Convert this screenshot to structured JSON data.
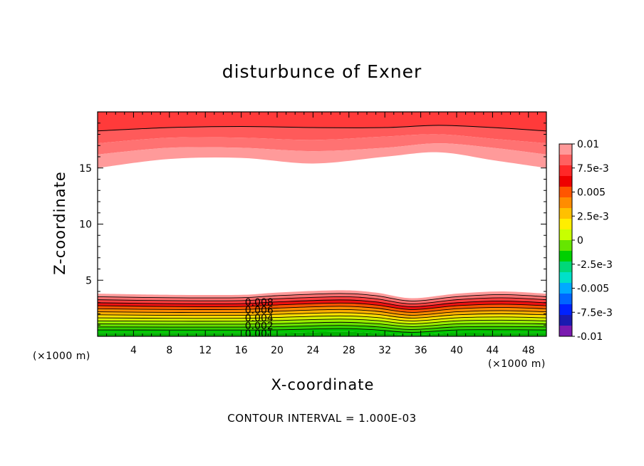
{
  "chart_data": {
    "type": "heatmap",
    "title": "disturbunce of Exner",
    "xlabel": "X-coordinate",
    "ylabel": "Z-coordinate",
    "x_unit": "(×1000 m)",
    "xlim": [
      0,
      50
    ],
    "ylim": [
      0,
      20
    ],
    "x_ticks": [
      4,
      8,
      12,
      16,
      20,
      24,
      28,
      32,
      36,
      40,
      44,
      48
    ],
    "y_ticks": [
      5,
      10,
      15
    ],
    "contour_interval_text": "CONTOUR INTERVAL = 1.000E-03",
    "contour_labels": [
      {
        "text": "0.008",
        "x": 18,
        "z": 3.0
      },
      {
        "text": "0.006",
        "x": 18,
        "z": 2.3
      },
      {
        "text": "0.004",
        "x": 18,
        "z": 1.6
      },
      {
        "text": "0.002",
        "x": 18,
        "z": 0.9
      },
      {
        "text": "0.001",
        "x": 18,
        "z": 0.2
      }
    ],
    "colorbar": {
      "labels": [
        "0.01",
        "7.5e-3",
        "0.005",
        "2.5e-3",
        "0",
        "-2.5e-3",
        "-0.005",
        "-7.5e-3",
        "-0.01"
      ],
      "colors": [
        "#ff9999",
        "#ff6060",
        "#ff2828",
        "#ee0000",
        "#ff5500",
        "#ff8c00",
        "#ffc000",
        "#ffee00",
        "#c8ff00",
        "#66e600",
        "#00d000",
        "#00d878",
        "#00e0c8",
        "#00aaff",
        "#0066ff",
        "#0022ff",
        "#1a1ab0",
        "#7a1ab0"
      ]
    },
    "upper_bands": {
      "z_top": 20,
      "boundaries": [
        {
          "x": [
            0,
            8,
            16,
            24,
            32,
            38,
            44,
            50
          ],
          "z": [
            18.3,
            18.6,
            18.7,
            18.6,
            18.6,
            18.8,
            18.6,
            18.3
          ]
        },
        {
          "x": [
            0,
            8,
            16,
            24,
            32,
            38,
            44,
            50
          ],
          "z": [
            17.2,
            17.7,
            17.7,
            17.5,
            17.8,
            18.0,
            17.6,
            17.2
          ]
        },
        {
          "x": [
            0,
            8,
            16,
            24,
            32,
            38,
            44,
            50
          ],
          "z": [
            16.2,
            16.8,
            16.8,
            16.5,
            16.8,
            17.2,
            16.8,
            16.2
          ]
        },
        {
          "x": [
            0,
            8,
            16,
            24,
            32,
            38,
            44,
            50
          ],
          "z": [
            15.0,
            15.8,
            15.9,
            15.4,
            16.0,
            16.4,
            15.7,
            15.0
          ]
        }
      ],
      "colors": [
        "#ff3a3a",
        "#ff5a5a",
        "#ff7272",
        "#ff9a9a"
      ]
    },
    "lower_bands": {
      "x": [
        0,
        8,
        16,
        20,
        27,
        31,
        35,
        40,
        45,
        50
      ],
      "top_boundary": [
        3.8,
        3.7,
        3.7,
        3.9,
        4.1,
        3.9,
        3.4,
        3.8,
        4.0,
        3.8
      ],
      "bottom_offsets": [
        0.3,
        0.3,
        0.3,
        0.3,
        0.4,
        0.3,
        0.1,
        0.3,
        0.3,
        0.3
      ],
      "colors": [
        "#ff9a9a",
        "#ff7070",
        "#ff4040",
        "#ee1111",
        "#ff5500",
        "#ff8c00",
        "#ffb000",
        "#ffe000",
        "#d4f000",
        "#9cf000",
        "#66e000",
        "#33d000",
        "#00c800"
      ]
    }
  }
}
